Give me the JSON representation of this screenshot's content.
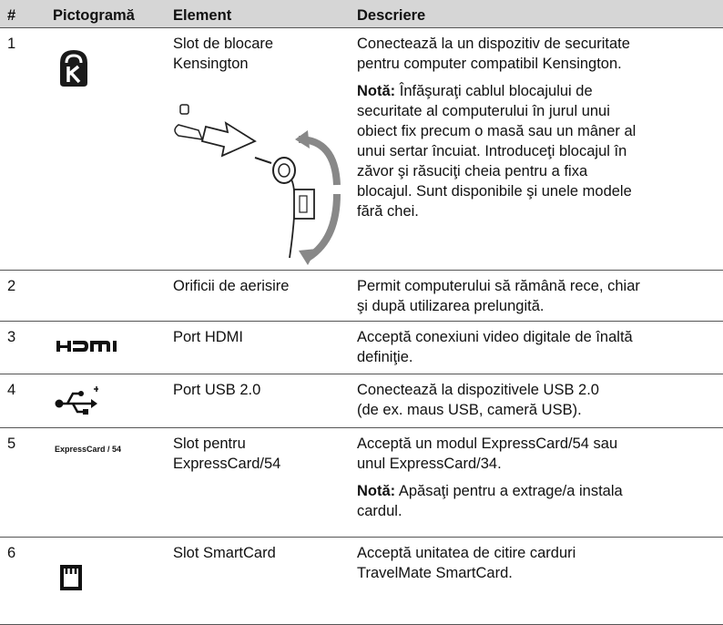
{
  "table": {
    "header": [
      "#",
      "Pictogramă",
      "Element",
      "Descriere"
    ],
    "rows": [
      {
        "number": "1",
        "element": [
          "Slot de blocare",
          "Kensington"
        ],
        "description": [
          {
            "lines": [
              "Conectează la un dispozitiv de securitate",
              "pentru computer compatibil Kensington."
            ]
          },
          {
            "label": "Notă:",
            "lines": [
              "Înfăşuraţi cablul blocajului de",
              "securitate al computerului în jurul unui",
              "obiect fix precum o masă sau un mâner al",
              "unui sertar încuiat. Introduceţi blocajul în",
              "zăvor şi răsuciţi cheia pentru a fixa",
              "blocajul. Sunt disponibile şi unele modele",
              "fără chei."
            ]
          }
        ]
      },
      {
        "number": "2",
        "element": [
          "Orificii de aerisire"
        ],
        "description": [
          {
            "lines": [
              "Permit computerului să rămână rece, chiar",
              "şi după utilizarea prelungită."
            ]
          }
        ]
      },
      {
        "number": "3",
        "element": [
          "Port HDMI"
        ],
        "description": [
          {
            "lines": [
              "Acceptă conexiuni video digitale de înaltă",
              "definiţie."
            ]
          }
        ]
      },
      {
        "number": "4",
        "element": [
          "Port USB 2.0"
        ],
        "description": [
          {
            "lines": [
              "Conectează la dispozitivele USB 2.0",
              "(de ex. maus USB, cameră USB)."
            ]
          }
        ]
      },
      {
        "number": "5",
        "pictogram": "ExpressCard / 54",
        "element": [
          "Slot pentru",
          "ExpressCard/54"
        ],
        "description": [
          {
            "lines": [
              "Acceptă un modul ExpressCard/54 sau",
              "unul ExpressCard/34."
            ]
          },
          {
            "label": "Notă:",
            "lines": [
              "Apăsaţi pentru a extrage/a instala",
              "cardul."
            ]
          }
        ]
      },
      {
        "number": "6",
        "element": [
          "Slot SmartCard"
        ],
        "description": [
          {
            "lines": [
              "Acceptă unitatea de citire carduri",
              "TravelMate SmartCard."
            ]
          }
        ]
      }
    ]
  }
}
